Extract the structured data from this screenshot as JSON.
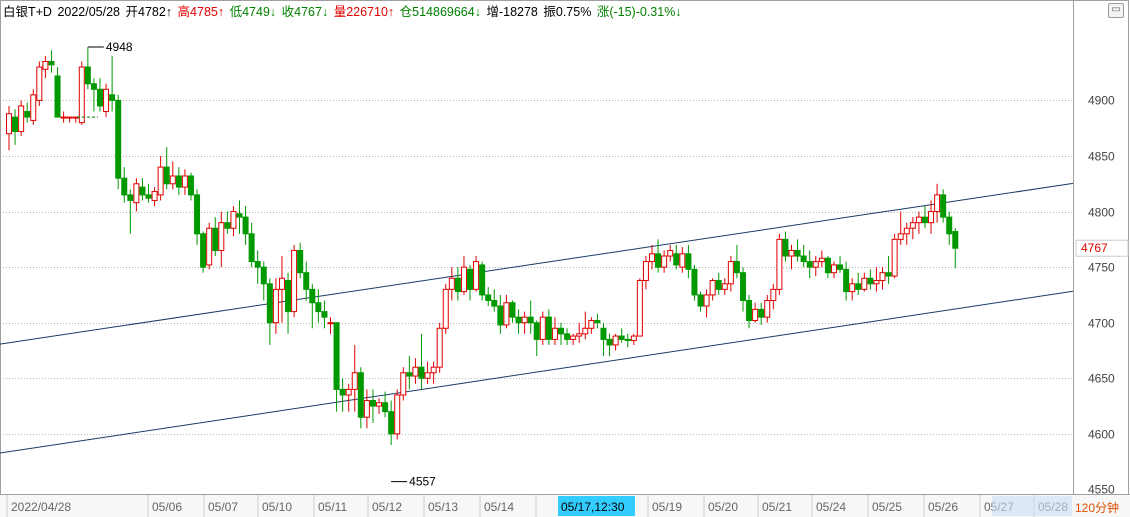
{
  "header": {
    "name": "白银T+D",
    "date": "2022/05/28",
    "open": "开4782↑",
    "high": "高4785↑",
    "low": "低4749↓",
    "close": "收4767↓",
    "volume": "量226710↑",
    "position": "仓514869664↓",
    "increase": "增-18278",
    "amplitude": "振0.75%",
    "change": "涨(-15)-0.31%↓"
  },
  "colors": {
    "up": "#e00000",
    "down": "#009900",
    "grid": "#b4b4b4",
    "channel": "#1a3a66",
    "cursor_bg": "#33ccff"
  },
  "chart_data": {
    "type": "candlestick",
    "period_label": "120分钟",
    "ylim": [
      4550,
      4950
    ],
    "yticks": [
      4550,
      4600,
      4650,
      4700,
      4750,
      4800,
      4850,
      4900
    ],
    "x_labels": [
      "2022/04/28",
      "05/06",
      "05/07",
      "05/10",
      "05/11",
      "05/12",
      "05/13",
      "05/14",
      "05/17,12:30",
      "05/19",
      "05/20",
      "05/21",
      "05/24",
      "05/25",
      "05/26",
      "05/27",
      "05/28"
    ],
    "highlighted_x_label": "05/17,12:30",
    "last_price_label": "4767",
    "annotations": [
      {
        "text": "4948",
        "value": 4948
      },
      {
        "text": "4557",
        "value": 4557
      }
    ],
    "channel": {
      "upper": [
        [
          0,
          4682
        ],
        [
          175,
          4825
        ]
      ],
      "lower": [
        [
          0,
          4584
        ],
        [
          175,
          4728
        ]
      ]
    },
    "bars": [
      [
        4870,
        4895,
        4855,
        4888
      ],
      [
        4885,
        4892,
        4860,
        4872
      ],
      [
        4872,
        4900,
        4868,
        4895
      ],
      [
        4890,
        4898,
        4880,
        4885
      ],
      [
        4882,
        4910,
        4878,
        4905
      ],
      [
        4900,
        4935,
        4895,
        4930
      ],
      [
        4928,
        4940,
        4920,
        4935
      ],
      [
        4935,
        4945,
        4925,
        4932
      ],
      [
        4922,
        4930,
        4915,
        4885
      ],
      [
        4885,
        4890,
        4880,
        4885
      ],
      [
        4885,
        4885,
        4880,
        4885
      ],
      [
        4885,
        4885,
        4880,
        4885
      ],
      [
        4880,
        4935,
        4878,
        4930
      ],
      [
        4930,
        4948,
        4910,
        4915
      ],
      [
        4915,
        4920,
        4890,
        4910
      ],
      [
        4910,
        4920,
        4890,
        4895
      ],
      [
        4890,
        4915,
        4885,
        4910
      ],
      [
        4905,
        4940,
        4890,
        4900
      ],
      [
        4900,
        4905,
        4820,
        4830
      ],
      [
        4830,
        4840,
        4808,
        4815
      ],
      [
        4815,
        4820,
        4780,
        4810
      ],
      [
        4808,
        4830,
        4800,
        4825
      ],
      [
        4822,
        4830,
        4810,
        4815
      ],
      [
        4815,
        4825,
        4808,
        4812
      ],
      [
        4810,
        4822,
        4805,
        4818
      ],
      [
        4815,
        4850,
        4810,
        4840
      ],
      [
        4840,
        4858,
        4820,
        4825
      ],
      [
        4825,
        4845,
        4820,
        4832
      ],
      [
        4832,
        4840,
        4815,
        4822
      ],
      [
        4822,
        4838,
        4815,
        4832
      ],
      [
        4832,
        4835,
        4810,
        4815
      ],
      [
        4815,
        4820,
        4770,
        4780
      ],
      [
        4780,
        4782,
        4745,
        4750
      ],
      [
        4752,
        4790,
        4748,
        4785
      ],
      [
        4785,
        4795,
        4760,
        4765
      ],
      [
        4765,
        4800,
        4750,
        4790
      ],
      [
        4790,
        4800,
        4780,
        4785
      ],
      [
        4785,
        4805,
        4778,
        4800
      ],
      [
        4798,
        4810,
        4780,
        4795
      ],
      [
        4795,
        4805,
        4770,
        4780
      ],
      [
        4780,
        4790,
        4750,
        4755
      ],
      [
        4755,
        4765,
        4735,
        4750
      ],
      [
        4750,
        4755,
        4720,
        4735
      ],
      [
        4735,
        4740,
        4680,
        4700
      ],
      [
        4700,
        4740,
        4690,
        4730
      ],
      [
        4730,
        4760,
        4700,
        4740
      ],
      [
        4738,
        4745,
        4690,
        4710
      ],
      [
        4710,
        4770,
        4705,
        4765
      ],
      [
        4765,
        4772,
        4740,
        4745
      ],
      [
        4745,
        4755,
        4720,
        4730
      ],
      [
        4730,
        4735,
        4695,
        4718
      ],
      [
        4718,
        4730,
        4700,
        4710
      ],
      [
        4710,
        4720,
        4695,
        4705
      ],
      [
        4700,
        4705,
        4690,
        4700
      ],
      [
        4700,
        4690,
        4620,
        4640
      ],
      [
        4640,
        4650,
        4620,
        4635
      ],
      [
        4635,
        4645,
        4620,
        4640
      ],
      [
        4640,
        4680,
        4620,
        4655
      ],
      [
        4655,
        4660,
        4605,
        4615
      ],
      [
        4615,
        4640,
        4605,
        4630
      ],
      [
        4630,
        4640,
        4610,
        4625
      ],
      [
        4625,
        4632,
        4618,
        4628
      ],
      [
        4628,
        4638,
        4615,
        4620
      ],
      [
        4620,
        4630,
        4590,
        4600
      ],
      [
        4600,
        4640,
        4595,
        4635
      ],
      [
        4635,
        4660,
        4630,
        4655
      ],
      [
        4655,
        4670,
        4640,
        4652
      ],
      [
        4652,
        4668,
        4645,
        4660
      ],
      [
        4660,
        4690,
        4640,
        4650
      ],
      [
        4650,
        4665,
        4645,
        4655
      ],
      [
        4655,
        4665,
        4645,
        4660
      ],
      [
        4660,
        4700,
        4655,
        4695
      ],
      [
        4695,
        4735,
        4690,
        4730
      ],
      [
        4730,
        4750,
        4720,
        4740
      ],
      [
        4740,
        4750,
        4720,
        4728
      ],
      [
        4728,
        4760,
        4725,
        4750
      ],
      [
        4748,
        4752,
        4720,
        4730
      ],
      [
        4730,
        4760,
        4728,
        4755
      ],
      [
        4752,
        4755,
        4720,
        4725
      ],
      [
        4725,
        4732,
        4715,
        4720
      ],
      [
        4720,
        4730,
        4710,
        4715
      ],
      [
        4715,
        4725,
        4690,
        4698
      ],
      [
        4698,
        4725,
        4695,
        4718
      ],
      [
        4718,
        4720,
        4700,
        4705
      ],
      [
        4705,
        4712,
        4690,
        4700
      ],
      [
        4700,
        4710,
        4690,
        4705
      ],
      [
        4705,
        4720,
        4690,
        4700
      ],
      [
        4700,
        4702,
        4670,
        4685
      ],
      [
        4685,
        4710,
        4680,
        4705
      ],
      [
        4705,
        4712,
        4680,
        4685
      ],
      [
        4685,
        4705,
        4680,
        4695
      ],
      [
        4695,
        4700,
        4680,
        4690
      ],
      [
        4690,
        4695,
        4680,
        4685
      ],
      [
        4685,
        4690,
        4680,
        4688
      ],
      [
        4688,
        4700,
        4682,
        4690
      ],
      [
        4690,
        4710,
        4685,
        4695
      ],
      [
        4695,
        4705,
        4690,
        4702
      ],
      [
        4702,
        4708,
        4695,
        4700
      ],
      [
        4695,
        4700,
        4670,
        4685
      ],
      [
        4685,
        4690,
        4670,
        4680
      ],
      [
        4680,
        4690,
        4675,
        4688
      ],
      [
        4688,
        4695,
        4682,
        4685
      ],
      [
        4685,
        4690,
        4678,
        4684
      ],
      [
        4684,
        4690,
        4680,
        4688
      ],
      [
        4688,
        4740,
        4725,
        4738
      ],
      [
        4738,
        4760,
        4730,
        4755
      ],
      [
        4755,
        4770,
        4748,
        4762
      ],
      [
        4762,
        4775,
        4745,
        4750
      ],
      [
        4750,
        4765,
        4745,
        4760
      ],
      [
        4760,
        4770,
        4755,
        4765
      ],
      [
        4762,
        4770,
        4748,
        4752
      ],
      [
        4750,
        4768,
        4745,
        4762
      ],
      [
        4762,
        4770,
        4740,
        4748
      ],
      [
        4748,
        4752,
        4720,
        4725
      ],
      [
        4725,
        4728,
        4710,
        4715
      ],
      [
        4715,
        4730,
        4705,
        4725
      ],
      [
        4725,
        4740,
        4720,
        4738
      ],
      [
        4738,
        4745,
        4725,
        4730
      ],
      [
        4730,
        4740,
        4725,
        4735
      ],
      [
        4735,
        4760,
        4728,
        4755
      ],
      [
        4755,
        4770,
        4740,
        4745
      ],
      [
        4745,
        4750,
        4710,
        4720
      ],
      [
        4720,
        4725,
        4695,
        4702
      ],
      [
        4702,
        4718,
        4700,
        4712
      ],
      [
        4712,
        4718,
        4698,
        4705
      ],
      [
        4705,
        4725,
        4700,
        4720
      ],
      [
        4720,
        4735,
        4712,
        4730
      ],
      [
        4730,
        4780,
        4725,
        4775
      ],
      [
        4775,
        4782,
        4755,
        4760
      ],
      [
        4760,
        4770,
        4748,
        4765
      ],
      [
        4765,
        4775,
        4755,
        4760
      ],
      [
        4760,
        4770,
        4750,
        4755
      ],
      [
        4755,
        4765,
        4740,
        4750
      ],
      [
        4750,
        4760,
        4742,
        4755
      ],
      [
        4755,
        4765,
        4750,
        4758
      ],
      [
        4758,
        4760,
        4740,
        4745
      ],
      [
        4745,
        4755,
        4740,
        4752
      ],
      [
        4752,
        4760,
        4745,
        4748
      ],
      [
        4748,
        4755,
        4720,
        4728
      ],
      [
        4728,
        4740,
        4720,
        4735
      ],
      [
        4735,
        4745,
        4725,
        4730
      ],
      [
        4730,
        4745,
        4728,
        4740
      ],
      [
        4740,
        4748,
        4730,
        4735
      ],
      [
        4735,
        4750,
        4728,
        4738
      ],
      [
        4738,
        4750,
        4730,
        4745
      ],
      [
        4745,
        4760,
        4735,
        4742
      ],
      [
        4742,
        4780,
        4740,
        4775
      ],
      [
        4775,
        4800,
        4770,
        4780
      ],
      [
        4780,
        4790,
        4770,
        4785
      ],
      [
        4785,
        4795,
        4775,
        4790
      ],
      [
        4790,
        4800,
        4780,
        4795
      ],
      [
        4795,
        4805,
        4785,
        4790
      ],
      [
        4790,
        4810,
        4780,
        4800
      ],
      [
        4800,
        4825,
        4790,
        4815
      ],
      [
        4815,
        4820,
        4790,
        4795
      ],
      [
        4795,
        4800,
        4770,
        4780
      ],
      [
        4782,
        4785,
        4749,
        4767
      ]
    ]
  }
}
